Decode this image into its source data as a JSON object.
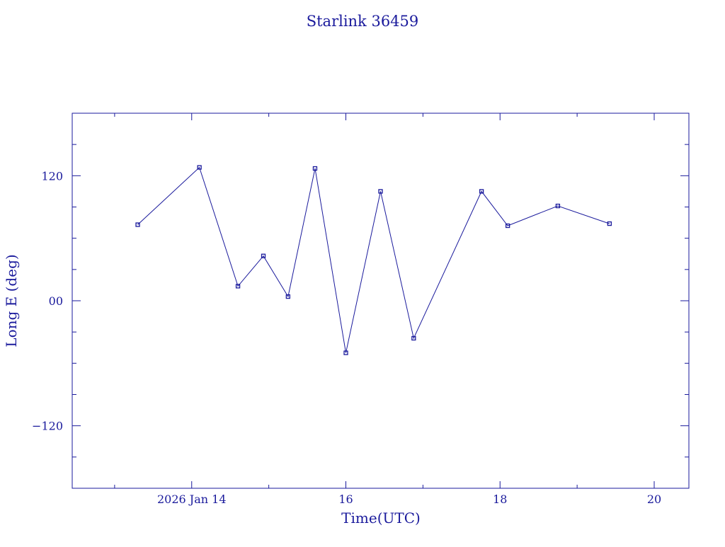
{
  "chart_data": {
    "type": "line",
    "title": "Starlink 36459",
    "xlabel": "Time(UTC)",
    "ylabel": "Long E (deg)",
    "x_ticks": [
      {
        "value": 14,
        "label": "2026 Jan 14"
      },
      {
        "value": 16,
        "label": "16"
      },
      {
        "value": 18,
        "label": "18"
      },
      {
        "value": 20,
        "label": "20"
      }
    ],
    "y_ticks": [
      {
        "value": 120,
        "label": "120"
      },
      {
        "value": 0,
        "label": "00"
      },
      {
        "value": -120,
        "label": "-120"
      }
    ],
    "xlim": [
      12.45,
      20.45
    ],
    "ylim": [
      -180,
      180
    ],
    "grid": false,
    "colors": {
      "line": "#1a1a9c",
      "text": "#1a1a9c",
      "axes": "#1a1a9c"
    },
    "series": [
      {
        "x": [
          13.3,
          14.1,
          14.6,
          14.93,
          15.25,
          15.6,
          16.0,
          16.45,
          16.88,
          17.76,
          18.1,
          18.75,
          19.42
        ],
        "y": [
          73,
          128,
          14,
          43,
          4,
          127,
          -50,
          105,
          -36,
          105,
          72,
          91,
          74
        ]
      }
    ]
  }
}
